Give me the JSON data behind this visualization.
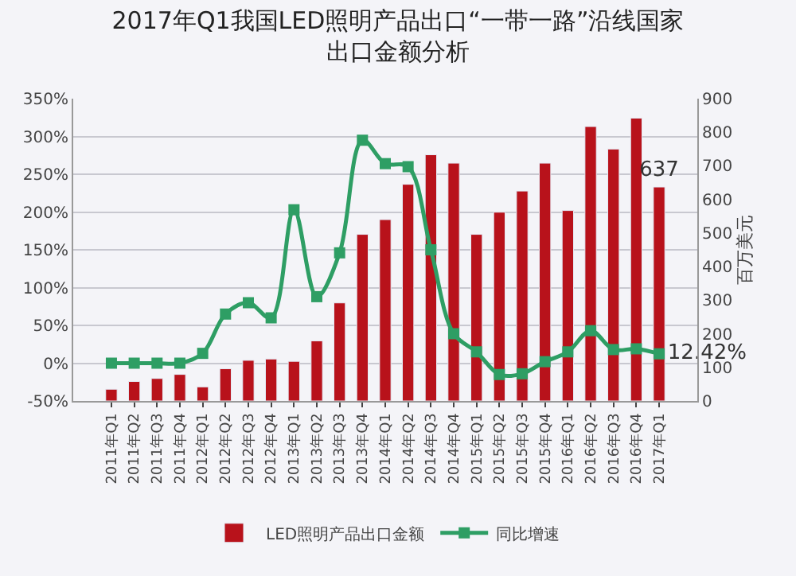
{
  "chart_data": {
    "type": "bar",
    "title": "2017年Q1我国LED照明产品出口“一带一路”沿线国家出口金额分析",
    "y2label": "百万美元",
    "categories": [
      "2011年Q1",
      "2011年Q2",
      "2011年Q3",
      "2011年Q4",
      "2012年Q1",
      "2012年Q2",
      "2012年Q3",
      "2012年Q4",
      "2013年Q1",
      "2013年Q2",
      "2013年Q3",
      "2013年Q4",
      "2014年Q1",
      "2014年Q2",
      "2014年Q3",
      "2014年Q4",
      "2015年Q1",
      "2015年Q2",
      "2015年Q3",
      "2015年Q4",
      "2016年Q1",
      "2016年Q2",
      "2016年Q3",
      "2016年Q4",
      "2017年Q1"
    ],
    "series": [
      {
        "name": "LED照明产品出口金额",
        "axis": "y2",
        "color": "#b8121b",
        "values": [
          35,
          58,
          67,
          79,
          42,
          96,
          121,
          125,
          118,
          179,
          292,
          496,
          540,
          645,
          733,
          708,
          496,
          562,
          625,
          708,
          567,
          817,
          750,
          842,
          637
        ],
        "value_labels": [
          null,
          null,
          null,
          null,
          null,
          null,
          null,
          null,
          null,
          null,
          null,
          null,
          null,
          null,
          null,
          null,
          null,
          null,
          null,
          null,
          null,
          null,
          null,
          null,
          "637"
        ]
      },
      {
        "name": "同比增速",
        "type": "line",
        "axis": "y",
        "color": "#2e9e64",
        "marker": "square",
        "values": [
          0,
          0,
          0,
          0,
          13,
          65,
          80,
          60,
          203,
          88,
          146,
          295,
          264,
          260,
          150,
          39,
          15,
          -15,
          -14,
          2,
          15,
          43,
          18,
          19,
          12.42
        ],
        "value_labels": [
          null,
          null,
          null,
          null,
          null,
          null,
          null,
          null,
          null,
          null,
          null,
          null,
          null,
          null,
          null,
          null,
          null,
          null,
          null,
          null,
          null,
          null,
          null,
          null,
          "12.42%"
        ]
      }
    ],
    "ylim": [
      -50,
      350
    ],
    "yticks": [
      {
        "value": -50,
        "label": "-50%"
      },
      {
        "value": 0,
        "label": "0%"
      },
      {
        "value": 50,
        "label": "50%"
      },
      {
        "value": 100,
        "label": "100%"
      },
      {
        "value": 150,
        "label": "150%"
      },
      {
        "value": 200,
        "label": "200%"
      },
      {
        "value": 250,
        "label": "250%"
      },
      {
        "value": 300,
        "label": "300%"
      },
      {
        "value": 350,
        "label": "350%"
      }
    ],
    "y2lim": [
      0,
      900
    ],
    "y2ticks": [
      0,
      100,
      200,
      300,
      400,
      500,
      600,
      700,
      800,
      900
    ],
    "grid": "y",
    "legend": "bottom"
  }
}
